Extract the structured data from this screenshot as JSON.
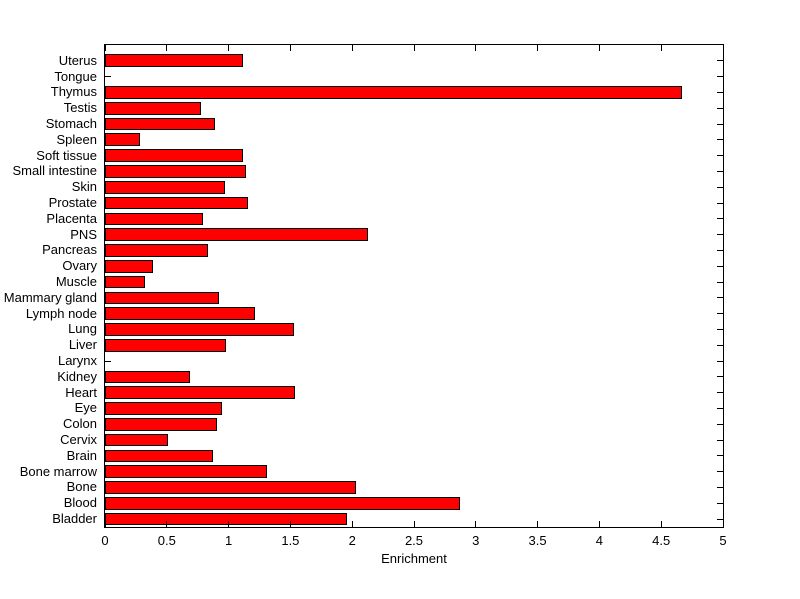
{
  "figure": {
    "background": "#ffffff"
  },
  "chart_data": {
    "type": "bar",
    "orientation": "horizontal",
    "title": "",
    "xlabel": "Enrichment",
    "ylabel": "",
    "xlim": [
      0,
      5
    ],
    "xticks": [
      0,
      0.5,
      1,
      1.5,
      2,
      2.5,
      3,
      3.5,
      4,
      4.5,
      5
    ],
    "xtick_labels": [
      "0",
      "0.5",
      "1",
      "1.5",
      "2",
      "2.5",
      "3",
      "3.5",
      "4",
      "4.5",
      "5"
    ],
    "grid": false,
    "legend_position": "none",
    "bar_color": "#ff0000",
    "bar_edge_color": "#000000",
    "axis_color": "#000000",
    "categories": [
      "Uterus",
      "Tongue",
      "Thymus",
      "Testis",
      "Stomach",
      "Spleen",
      "Soft tissue",
      "Small intestine",
      "Skin",
      "Prostate",
      "Placenta",
      "PNS",
      "Pancreas",
      "Ovary",
      "Muscle",
      "Mammary gland",
      "Lymph node",
      "Lung",
      "Liver",
      "Larynx",
      "Kidney",
      "Heart",
      "Eye",
      "Colon",
      "Cervix",
      "Brain",
      "Bone marrow",
      "Bone",
      "Blood",
      "Bladder"
    ],
    "values": [
      1.12,
      0,
      4.67,
      0.78,
      0.89,
      0.28,
      1.12,
      1.14,
      0.97,
      1.16,
      0.79,
      2.13,
      0.83,
      0.39,
      0.32,
      0.92,
      1.21,
      1.53,
      0.98,
      0,
      0.69,
      1.54,
      0.95,
      0.91,
      0.51,
      0.87,
      1.31,
      2.03,
      2.87,
      1.96
    ]
  }
}
